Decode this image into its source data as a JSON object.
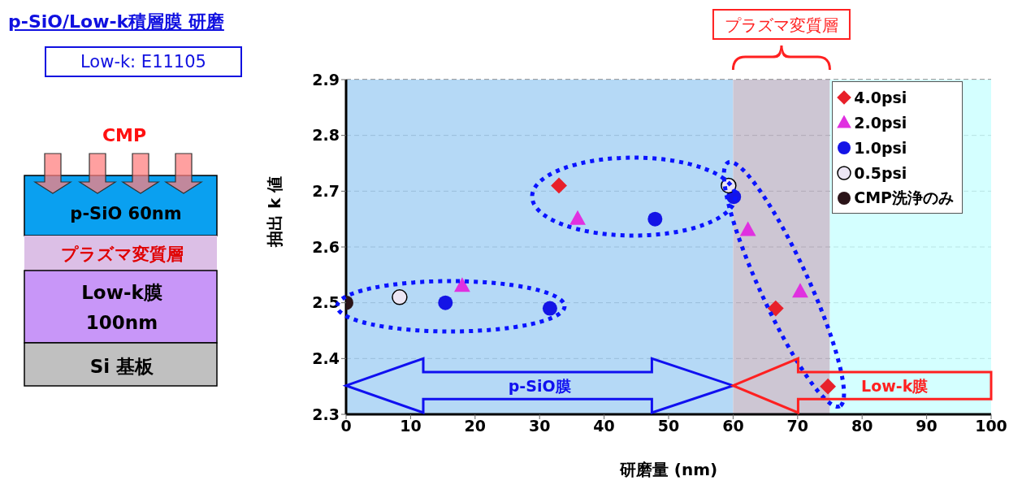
{
  "chart_data": {
    "type": "scatter",
    "title": "p-SiO/Low-k積層膜 研磨",
    "subtitle": "Low-k: E11105",
    "xlabel": "研磨量 (nm)",
    "ylabel": "抽出 k 値",
    "xlim": [
      0,
      100
    ],
    "xticks": [
      0,
      10,
      20,
      30,
      40,
      50,
      60,
      70,
      80,
      90,
      100
    ],
    "ylim": [
      2.3,
      2.9
    ],
    "yticks": [
      2.3,
      2.4,
      2.5,
      2.6,
      2.7,
      2.8,
      2.9
    ],
    "grid": "y",
    "legend": "top right",
    "bands": [
      {
        "axis": "x",
        "from": 0,
        "to": 60,
        "label": null,
        "color": "#a8d2f5"
      },
      {
        "axis": "x",
        "from": 60,
        "to": 75,
        "label": "プラズマ変質層",
        "color": "#c4bccb"
      },
      {
        "axis": "x",
        "from": 75,
        "to": 100,
        "label": null,
        "color": "#ccffff"
      }
    ],
    "annotations": [
      "CMP",
      "p-SiO 60nm",
      "プラズマ変質層",
      "Low-k膜",
      "100nm",
      "Si 基板",
      "p-SiO膜",
      "Low-k膜"
    ],
    "series": [
      {
        "name": "4.0psi",
        "color": "#e8202a",
        "marker": "diamond",
        "x": [
          33,
          66.6,
          74.7
        ],
        "values": [
          2.71,
          2.49,
          2.35
        ]
      },
      {
        "name": "2.0psi",
        "color": "#e030e0",
        "marker": "triangle",
        "x": [
          18,
          35.9,
          62.3,
          70.4
        ],
        "values": [
          2.53,
          2.65,
          2.63,
          2.52
        ]
      },
      {
        "name": "1.0psi",
        "color": "#1414e6",
        "marker": "circle",
        "x": [
          15.4,
          31.6,
          47.9,
          60.1
        ],
        "values": [
          2.5,
          2.49,
          2.65,
          2.69
        ]
      },
      {
        "name": "0.5psi",
        "color": "#ece6f4",
        "marker": "circle",
        "x": [
          8.3,
          59.3
        ],
        "values": [
          2.51,
          2.71
        ]
      },
      {
        "name": "CMP洗浄のみ",
        "color": "#2a1418",
        "marker": "circle",
        "x": [
          0
        ],
        "values": [
          2.5
        ]
      }
    ]
  }
}
